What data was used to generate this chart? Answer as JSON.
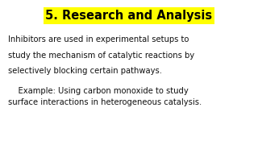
{
  "title": "5. Research and Analysis",
  "title_highlight_color": "#FFFF00",
  "title_text_color": "#000000",
  "title_fontsize": 10.5,
  "body_lines": [
    "Inhibitors are used in experimental setups to",
    "study the mechanism of catalytic reactions by",
    "selectively blocking certain pathways.",
    "    Example: Using carbon monoxide to study",
    "surface interactions in heterogeneous catalysis."
  ],
  "body_fontsize": 7.2,
  "body_text_color": "#111111",
  "background_color": "#ffffff",
  "font_family": "DejaVu Sans"
}
